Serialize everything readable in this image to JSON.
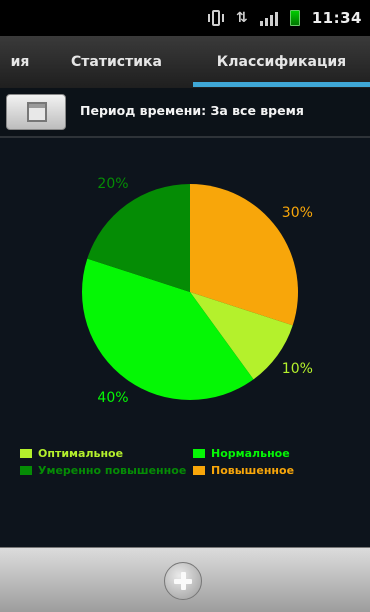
{
  "statusbar": {
    "time": "11:34",
    "icons": [
      "vibrate-icon",
      "sync-icon",
      "signal-icon",
      "battery-icon"
    ]
  },
  "tabs": [
    {
      "label": "ия",
      "active": false
    },
    {
      "label": "Статистика",
      "active": false
    },
    {
      "label": "Классификация",
      "active": true
    }
  ],
  "period": {
    "label": "Период времени: За все время",
    "button_icon": "calendar-icon"
  },
  "chart_data": {
    "type": "pie",
    "slices": [
      {
        "name": "Повышенное",
        "value": 30,
        "label": "30%",
        "color": "#f8a60a"
      },
      {
        "name": "Оптимальное",
        "value": 10,
        "label": "10%",
        "color": "#b4f12c"
      },
      {
        "name": "Нормальное",
        "value": 40,
        "label": "40%",
        "color": "#05f705"
      },
      {
        "name": "Умеренно повышенное",
        "value": 20,
        "label": "20%",
        "color": "#058c05"
      }
    ]
  },
  "legend": [
    {
      "label": "Оптимальное",
      "color": "#b4f12c"
    },
    {
      "label": "Нормальное",
      "color": "#05f705"
    },
    {
      "label": "Умеренно повышенное",
      "color": "#058c05"
    },
    {
      "label": "Повышенное",
      "color": "#f8a60a"
    }
  ],
  "bottombar": {
    "button_icon": "add-circle-icon"
  }
}
